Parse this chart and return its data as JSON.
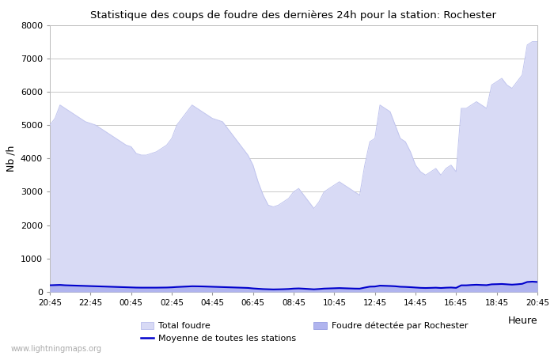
{
  "title": "Statistique des coups de foudre des dernières 24h pour la station: Rochester",
  "xlabel": "Heure",
  "ylabel": "Nb /h",
  "xlim_labels": [
    "20:45",
    "22:45",
    "00:45",
    "02:45",
    "04:45",
    "06:45",
    "08:45",
    "10:45",
    "12:45",
    "14:45",
    "16:45",
    "18:45",
    "20:45"
  ],
  "ylim": [
    0,
    8000
  ],
  "yticks": [
    0,
    1000,
    2000,
    3000,
    4000,
    5000,
    6000,
    7000,
    8000
  ],
  "background_color": "#ffffff",
  "plot_bg_color": "#ffffff",
  "grid_color": "#c8c8c8",
  "watermark": "www.lightningmaps.org",
  "total_foudre_color": "#d8daf5",
  "total_foudre_edge_color": "#c0c4ee",
  "rochester_color": "#b0b4ee",
  "rochester_edge_color": "#8890dd",
  "moyenne_color": "#0000cc",
  "x_values": [
    0,
    1,
    2,
    3,
    4,
    5,
    6,
    7,
    8,
    9,
    10,
    11,
    12,
    13,
    14,
    15,
    16,
    17,
    18,
    19,
    20,
    21,
    22,
    23,
    24,
    25,
    26,
    27,
    28,
    29,
    30,
    31,
    32,
    33,
    34,
    35,
    36,
    37,
    38,
    39,
    40,
    41,
    42,
    43,
    44,
    45,
    46,
    47,
    48,
    49,
    50,
    51,
    52,
    53,
    54,
    55,
    56,
    57,
    58,
    59,
    60,
    61,
    62,
    63,
    64,
    65,
    66,
    67,
    68,
    69,
    70,
    71,
    72,
    73,
    74,
    75,
    76,
    77,
    78,
    79,
    80,
    81,
    82,
    83,
    84,
    85,
    86,
    87,
    88,
    89,
    90,
    91,
    92,
    93,
    94,
    95,
    96
  ],
  "total_foudre_y": [
    5000,
    5200,
    5600,
    5500,
    5400,
    5300,
    5200,
    5100,
    5050,
    5000,
    4900,
    4800,
    4700,
    4600,
    4500,
    4400,
    4350,
    4150,
    4100,
    4100,
    4150,
    4200,
    4300,
    4400,
    4600,
    5000,
    5200,
    5400,
    5600,
    5500,
    5400,
    5300,
    5200,
    5150,
    5100,
    4900,
    4700,
    4500,
    4300,
    4100,
    3800,
    3300,
    2900,
    2600,
    2550,
    2600,
    2700,
    2800,
    3000,
    3100,
    2900,
    2700,
    2500,
    2700,
    3000,
    3100,
    3200,
    3300,
    3200,
    3100,
    3000,
    2900,
    3800,
    4500,
    4600,
    5600,
    5500,
    5400,
    5000,
    4600,
    4500,
    4200,
    3800,
    3600,
    3500,
    3600,
    3700,
    3500,
    3700,
    3800,
    3600,
    5500,
    5500,
    5600,
    5700,
    5600,
    5500,
    6200,
    6300,
    6400,
    6200,
    6100,
    6300,
    6500,
    7400,
    7500,
    7500
  ],
  "rochester_y": [
    200,
    210,
    220,
    200,
    190,
    180,
    180,
    170,
    165,
    160,
    155,
    150,
    145,
    140,
    135,
    130,
    125,
    120,
    120,
    120,
    120,
    120,
    125,
    130,
    140,
    155,
    160,
    170,
    180,
    175,
    170,
    160,
    155,
    150,
    145,
    140,
    135,
    130,
    125,
    120,
    100,
    90,
    80,
    75,
    70,
    75,
    80,
    85,
    100,
    105,
    95,
    85,
    75,
    85,
    100,
    105,
    110,
    115,
    110,
    105,
    100,
    95,
    130,
    160,
    165,
    190,
    185,
    180,
    170,
    155,
    150,
    140,
    130,
    120,
    115,
    120,
    125,
    115,
    125,
    130,
    120,
    200,
    200,
    210,
    220,
    210,
    205,
    230,
    235,
    240,
    230,
    220,
    230,
    245,
    300,
    310,
    300
  ],
  "moyenne_y": [
    200,
    205,
    210,
    200,
    195,
    190,
    185,
    180,
    175,
    170,
    165,
    160,
    155,
    150,
    145,
    140,
    135,
    130,
    128,
    128,
    128,
    128,
    130,
    132,
    138,
    148,
    155,
    162,
    170,
    168,
    165,
    160,
    155,
    150,
    145,
    140,
    135,
    130,
    125,
    120,
    105,
    95,
    85,
    80,
    75,
    78,
    82,
    88,
    100,
    105,
    97,
    88,
    78,
    88,
    100,
    105,
    110,
    115,
    110,
    105,
    100,
    98,
    130,
    158,
    162,
    188,
    183,
    178,
    170,
    155,
    150,
    142,
    132,
    122,
    118,
    122,
    127,
    118,
    127,
    132,
    122,
    198,
    198,
    208,
    215,
    208,
    203,
    228,
    232,
    238,
    228,
    218,
    228,
    242,
    298,
    308,
    298
  ],
  "legend_total_label": "Total foudre",
  "legend_moyenne_label": "Moyenne de toutes les stations",
  "legend_rochester_label": "Foudre détectée par Rochester"
}
